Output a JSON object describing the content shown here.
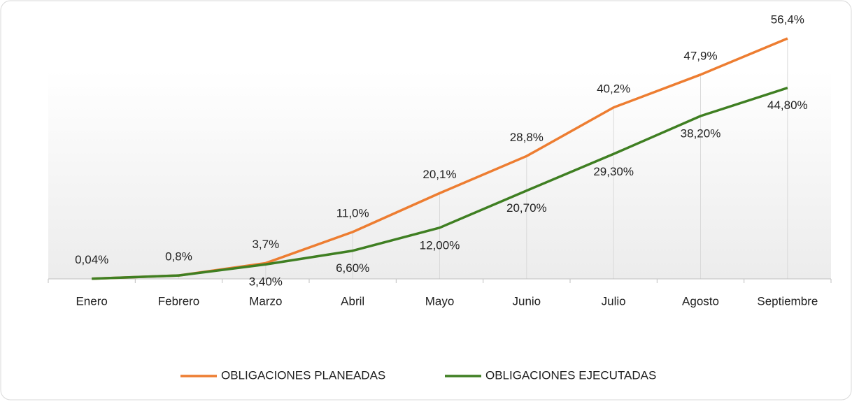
{
  "chart_data": {
    "type": "line",
    "categories": [
      "Enero",
      "Febrero",
      "Marzo",
      "Abril",
      "Mayo",
      "Junio",
      "Julio",
      "Agosto",
      "Septiembre"
    ],
    "series": [
      {
        "name": "OBLIGACIONES PLANEADAS",
        "color": "#ed7d31",
        "values": [
          0.04,
          0.8,
          3.7,
          11.0,
          20.1,
          28.8,
          40.2,
          47.9,
          56.4
        ],
        "value_labels": [
          "0,04%",
          "0,8%",
          "3,7%",
          "11,0%",
          "20,1%",
          "28,8%",
          "40,2%",
          "47,9%",
          "56,4%"
        ]
      },
      {
        "name": "OBLIGACIONES EJECUTADAS",
        "color": "#3f7f22",
        "values": [
          0.04,
          0.8,
          3.4,
          6.6,
          12.0,
          20.7,
          29.3,
          38.2,
          44.8
        ],
        "value_labels": [
          null,
          null,
          "3,40%",
          "6,60%",
          "12,00%",
          "20,70%",
          "29,30%",
          "38,20%",
          "44,80%"
        ]
      }
    ],
    "ylim": [
      0,
      60
    ],
    "legend": "bottom"
  }
}
